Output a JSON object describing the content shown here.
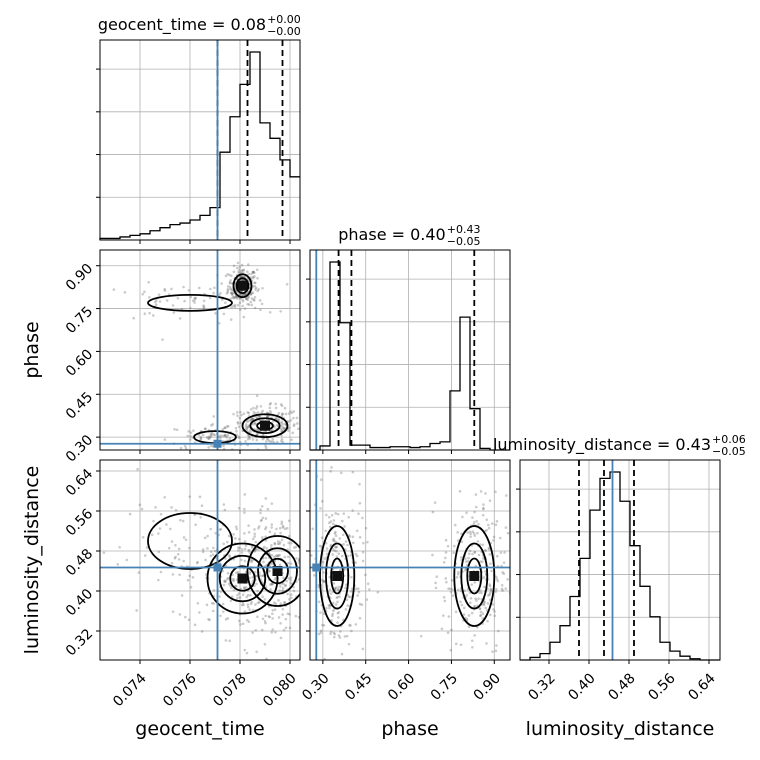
{
  "chart_data": {
    "type": "corner",
    "parameters": [
      "geocent_time",
      "phase",
      "luminosity_distance"
    ],
    "titles": [
      {
        "param": "geocent_time",
        "label": "geocent_time = 0.08",
        "plus": "+0.00",
        "minus": "−0.00"
      },
      {
        "param": "phase",
        "label": "phase = 0.40",
        "plus": "+0.43",
        "minus": "−0.05"
      },
      {
        "param": "luminosity_distance",
        "label": "luminosity_distance = 0.43",
        "plus": "+0.06",
        "minus": "−0.05"
      }
    ],
    "ranges": {
      "geocent_time": [
        0.0724,
        0.0804
      ],
      "phase": [
        0.255,
        0.955
      ],
      "luminosity_distance": [
        0.262,
        0.662
      ]
    },
    "ticks": {
      "geocent_time": [
        0.074,
        0.076,
        0.078,
        0.08
      ],
      "phase": [
        0.3,
        0.45,
        0.6,
        0.75,
        0.9
      ],
      "luminosity_distance": [
        0.32,
        0.4,
        0.48,
        0.56,
        0.64
      ]
    },
    "tick_labels": {
      "geocent_time": [
        "0.074",
        "0.076",
        "0.078",
        "0.080"
      ],
      "phase": [
        "0.30",
        "0.45",
        "0.60",
        "0.75",
        "0.90"
      ],
      "luminosity_distance": [
        "0.32",
        "0.40",
        "0.48",
        "0.56",
        "0.64"
      ]
    },
    "truths": {
      "geocent_time": 0.0771,
      "phase": 0.277,
      "luminosity_distance": 0.447
    },
    "quantiles": {
      "geocent_time": [
        0.0771,
        0.0783,
        0.0797
      ],
      "phase": [
        0.355,
        0.4,
        0.83
      ],
      "luminosity_distance": [
        0.38,
        0.43,
        0.49
      ]
    },
    "histograms": {
      "geocent_time": {
        "edges": [
          0.0724,
          0.0728,
          0.0732,
          0.0736,
          0.074,
          0.0744,
          0.0748,
          0.0752,
          0.0756,
          0.076,
          0.0764,
          0.0768,
          0.0772,
          0.0776,
          0.078,
          0.0784,
          0.0788,
          0.0792,
          0.0796,
          0.08,
          0.0804
        ],
        "counts": [
          1,
          1,
          2,
          3,
          4,
          6,
          8,
          10,
          11,
          13,
          16,
          21,
          57,
          80,
          101,
          122,
          76,
          66,
          52,
          41
        ]
      },
      "phase": {
        "edges": [
          0.255,
          0.29,
          0.325,
          0.36,
          0.395,
          0.43,
          0.465,
          0.5,
          0.535,
          0.57,
          0.605,
          0.64,
          0.675,
          0.71,
          0.745,
          0.78,
          0.815,
          0.85,
          0.885,
          0.92,
          0.955
        ],
        "counts": [
          0,
          5,
          232,
          157,
          6,
          6,
          3,
          3,
          4,
          4,
          3,
          4,
          8,
          10,
          73,
          164,
          51,
          2,
          0,
          0
        ]
      },
      "luminosity_distance": {
        "edges": [
          0.262,
          0.282,
          0.302,
          0.322,
          0.342,
          0.362,
          0.382,
          0.402,
          0.422,
          0.442,
          0.462,
          0.482,
          0.502,
          0.522,
          0.542,
          0.562,
          0.582,
          0.602,
          0.622,
          0.642,
          0.662
        ],
        "counts": [
          0,
          2,
          5,
          14,
          27,
          50,
          80,
          118,
          143,
          148,
          125,
          90,
          58,
          34,
          14,
          7,
          3,
          1,
          0,
          0
        ]
      }
    },
    "density_modes": {
      "geocent_time_vs_phase": [
        {
          "x": 0.0781,
          "y": 0.83,
          "weight": 1.0,
          "sx": 0.00018,
          "sy": 0.02
        },
        {
          "x": 0.079,
          "y": 0.34,
          "weight": 1.0,
          "sx": 0.00045,
          "sy": 0.02
        },
        {
          "x": 0.076,
          "y": 0.77,
          "weight": 0.3,
          "sx": 0.0012,
          "sy": 0.02
        },
        {
          "x": 0.077,
          "y": 0.3,
          "weight": 0.3,
          "sx": 0.0006,
          "sy": 0.015
        }
      ],
      "geocent_time_vs_luminosity_distance": [
        {
          "x": 0.0781,
          "y": 0.425,
          "weight": 1.0,
          "sx": 0.0007,
          "sy": 0.035
        },
        {
          "x": 0.0795,
          "y": 0.44,
          "weight": 0.8,
          "sx": 0.0006,
          "sy": 0.035
        },
        {
          "x": 0.076,
          "y": 0.5,
          "weight": 0.3,
          "sx": 0.0012,
          "sy": 0.04
        }
      ],
      "phase_vs_luminosity_distance": [
        {
          "x": 0.35,
          "y": 0.43,
          "weight": 1.0,
          "sx": 0.03,
          "sy": 0.05
        },
        {
          "x": 0.83,
          "y": 0.43,
          "weight": 1.0,
          "sx": 0.035,
          "sy": 0.05
        }
      ]
    },
    "axis_labels": {
      "geocent_time": "geocent_time",
      "phase": "phase",
      "luminosity_distance": "luminosity_distance"
    },
    "grid": true,
    "colors": {
      "truth": "#4682b4",
      "hist": "#000000",
      "samples": "#6a6a6a"
    }
  }
}
